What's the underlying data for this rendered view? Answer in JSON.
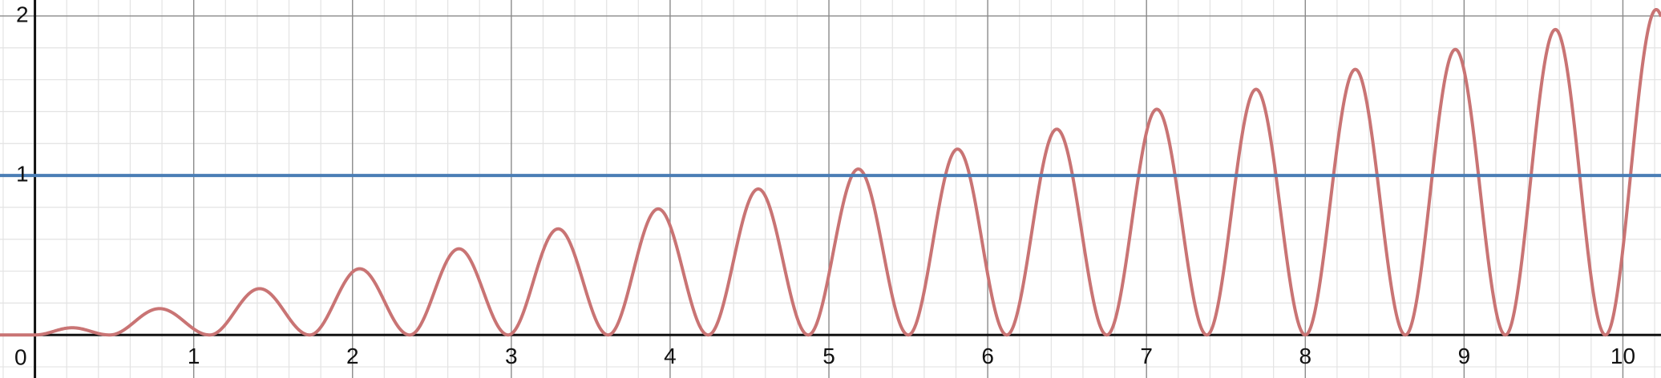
{
  "chart_data": {
    "type": "line",
    "title": "",
    "xlabel": "",
    "ylabel": "",
    "xlim": [
      -0.22,
      10.24
    ],
    "ylim": [
      -0.27,
      2.1
    ],
    "grid": true,
    "minor_grid_step": 0.2,
    "major_grid_step": 1,
    "x_ticks": [
      {
        "value": 1,
        "label": "1"
      },
      {
        "value": 2,
        "label": "2"
      },
      {
        "value": 3,
        "label": "3"
      },
      {
        "value": 4,
        "label": "4"
      },
      {
        "value": 5,
        "label": "5"
      },
      {
        "value": 6,
        "label": "6"
      },
      {
        "value": 7,
        "label": "7"
      },
      {
        "value": 8,
        "label": "8"
      },
      {
        "value": 9,
        "label": "9"
      },
      {
        "value": 10,
        "label": "10"
      }
    ],
    "y_ticks": [
      {
        "value": 1,
        "label": "1"
      },
      {
        "value": 2,
        "label": "2"
      }
    ],
    "origin_label": "0",
    "series": [
      {
        "color": "#c97474",
        "peak_x": [
          0.24,
          0.81,
          1.43,
          2.05,
          2.67,
          3.29,
          3.92,
          4.55,
          5.18,
          5.81,
          6.44,
          7.07,
          7.7,
          8.33,
          8.96,
          9.58,
          10.21
        ],
        "peak_y": [
          0.045,
          0.165,
          0.29,
          0.415,
          0.54,
          0.665,
          0.79,
          0.915,
          1.04,
          1.165,
          1.29,
          1.415,
          1.54,
          1.665,
          1.79,
          1.915,
          2.04
        ],
        "zero_x": [
          0,
          0.47,
          1.1,
          1.73,
          2.36,
          2.98,
          3.61,
          4.24,
          4.87,
          5.5,
          6.12,
          6.75,
          7.38,
          8.0,
          8.63,
          9.26,
          9.89
        ]
      },
      {
        "color": "#4a7db5",
        "x": [
          -0.22,
          10.24
        ],
        "y": [
          1,
          1
        ]
      }
    ]
  }
}
